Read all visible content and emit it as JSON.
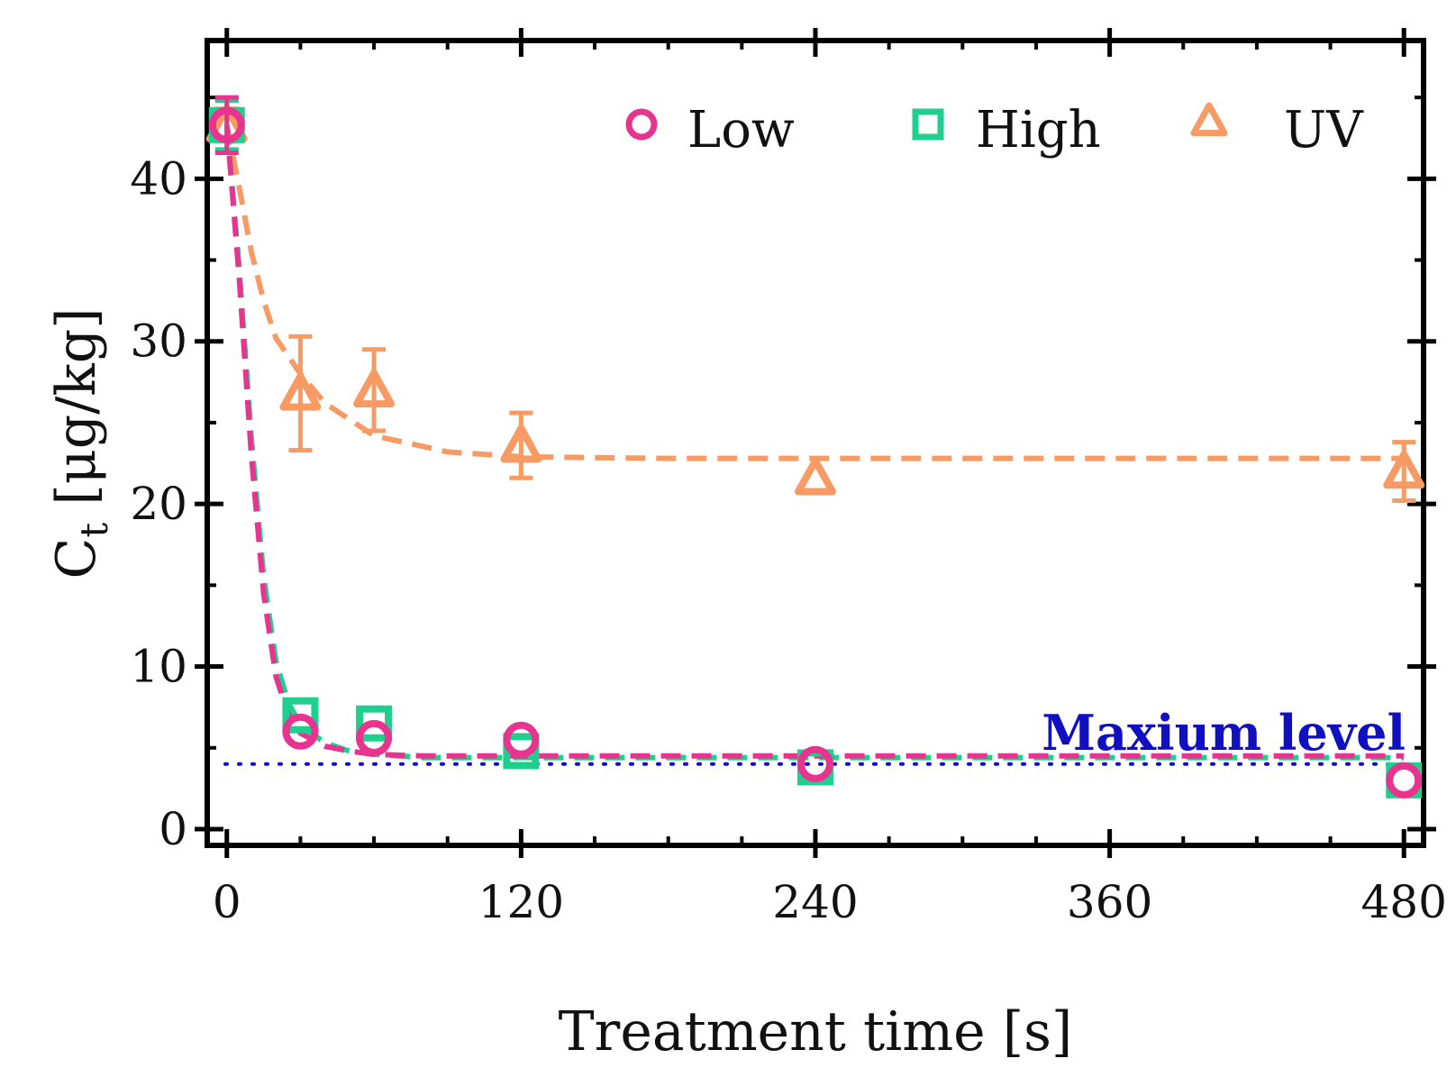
{
  "chart_data": {
    "type": "scatter",
    "title": "",
    "xlabel": "Treatment time [s]",
    "ylabel": "C",
    "ylabel_subscript": "t",
    "ylabel_unit": " [μg/kg]",
    "xlim": [
      -8,
      488
    ],
    "ylim": [
      -1,
      48.5
    ],
    "xticks": [
      0,
      120,
      240,
      360,
      480
    ],
    "yticks": [
      0,
      10,
      20,
      30,
      40
    ],
    "x": [
      0,
      30,
      60,
      120,
      240,
      480
    ],
    "series": [
      {
        "name": "Low",
        "color": "#e8338f",
        "marker": "circle",
        "values": [
          43.3,
          6.0,
          5.6,
          5.5,
          4.0,
          3.0
        ],
        "errors": [
          1.7,
          0.3,
          0.3,
          0.3,
          0.3,
          0.3
        ],
        "fit": [
          [
            0,
            43.3
          ],
          [
            5,
            34.0
          ],
          [
            10,
            23.0
          ],
          [
            15,
            14.5
          ],
          [
            20,
            9.4
          ],
          [
            25,
            7.1
          ],
          [
            30,
            5.9
          ],
          [
            40,
            5.1
          ],
          [
            50,
            4.8
          ],
          [
            60,
            4.6
          ],
          [
            80,
            4.5
          ],
          [
            120,
            4.5
          ],
          [
            240,
            4.5
          ],
          [
            480,
            4.5
          ]
        ]
      },
      {
        "name": "High",
        "color": "#1ecf8e",
        "marker": "square",
        "values": [
          43.3,
          7.0,
          6.5,
          4.8,
          3.8,
          3.0
        ],
        "errors": [
          1.5,
          0.3,
          0.3,
          0.3,
          0.3,
          0.3
        ],
        "fit": [
          [
            0,
            43.3
          ],
          [
            5,
            34.5
          ],
          [
            10,
            24.0
          ],
          [
            15,
            15.5
          ],
          [
            20,
            10.3
          ],
          [
            25,
            7.8
          ],
          [
            30,
            6.4
          ],
          [
            40,
            5.3
          ],
          [
            50,
            4.8
          ],
          [
            60,
            4.6
          ],
          [
            80,
            4.4
          ],
          [
            120,
            4.4
          ],
          [
            240,
            4.4
          ],
          [
            480,
            4.4
          ]
        ]
      },
      {
        "name": "UV",
        "color": "#f79a63",
        "marker": "triangle",
        "values": [
          43.3,
          26.8,
          27.0,
          23.6,
          21.6,
          22.0
        ],
        "errors": [
          1.0,
          3.5,
          2.5,
          2.0,
          0.3,
          1.8
        ],
        "fit": [
          [
            0,
            43.3
          ],
          [
            5,
            39.5
          ],
          [
            10,
            35.5
          ],
          [
            15,
            32.5
          ],
          [
            20,
            30.2
          ],
          [
            30,
            28.0
          ],
          [
            40,
            26.2
          ],
          [
            60,
            24.2
          ],
          [
            90,
            23.2
          ],
          [
            120,
            22.9
          ],
          [
            180,
            22.8
          ],
          [
            240,
            22.8
          ],
          [
            480,
            22.8
          ]
        ]
      }
    ],
    "reference_line": {
      "value": 4,
      "label": "Maxium level",
      "color": "#1010c0",
      "style": "dotted"
    },
    "legend": {
      "position": "top-right",
      "entries": [
        "Low",
        "High",
        "UV"
      ]
    },
    "grid": false
  }
}
